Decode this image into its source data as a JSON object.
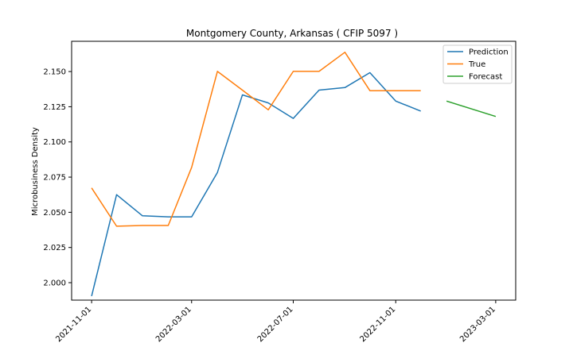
{
  "chart_data": {
    "type": "line",
    "title": "Montgomery County, Arkansas ( CFIP 5097 )",
    "xlabel": "",
    "ylabel": "Microbusiness Density",
    "xlim": [
      "2021-10-08",
      "2023-03-25"
    ],
    "ylim": [
      1.9876,
      2.1715
    ],
    "x_ticks": [
      "2021-11-01",
      "2022-03-01",
      "2022-07-01",
      "2022-11-01",
      "2023-03-01"
    ],
    "y_ticks": [
      "2.000",
      "2.025",
      "2.050",
      "2.075",
      "2.100",
      "2.125",
      "2.150"
    ],
    "legend_position": "top-right",
    "grid": false,
    "series": [
      {
        "name": "Prediction",
        "color": "#1f77b4",
        "x": [
          "2021-11-01",
          "2021-12-01",
          "2022-01-01",
          "2022-02-01",
          "2022-03-01",
          "2022-04-01",
          "2022-05-01",
          "2022-06-01",
          "2022-07-01",
          "2022-08-01",
          "2022-09-01",
          "2022-10-01",
          "2022-11-01",
          "2022-12-01"
        ],
        "y": [
          1.9905,
          2.0625,
          2.0475,
          2.0468,
          2.0468,
          2.0783,
          2.1334,
          2.1277,
          2.1167,
          2.1368,
          2.1386,
          2.1492,
          2.129,
          2.1219
        ]
      },
      {
        "name": "True",
        "color": "#ff7f0e",
        "x": [
          "2021-11-01",
          "2021-12-01",
          "2022-01-01",
          "2022-02-01",
          "2022-03-01",
          "2022-04-01",
          "2022-05-01",
          "2022-06-01",
          "2022-07-01",
          "2022-08-01",
          "2022-09-01",
          "2022-10-01",
          "2022-11-01",
          "2022-12-01"
        ],
        "y": [
          2.0673,
          2.0401,
          2.0406,
          2.0406,
          2.0819,
          2.1501,
          2.1368,
          2.1228,
          2.1501,
          2.1501,
          2.1637,
          2.1364,
          2.1364,
          2.1364
        ]
      },
      {
        "name": "Forecast",
        "color": "#2ca02c",
        "x": [
          "2023-01-01",
          "2023-03-01"
        ],
        "y": [
          2.129,
          2.1181
        ]
      }
    ]
  }
}
